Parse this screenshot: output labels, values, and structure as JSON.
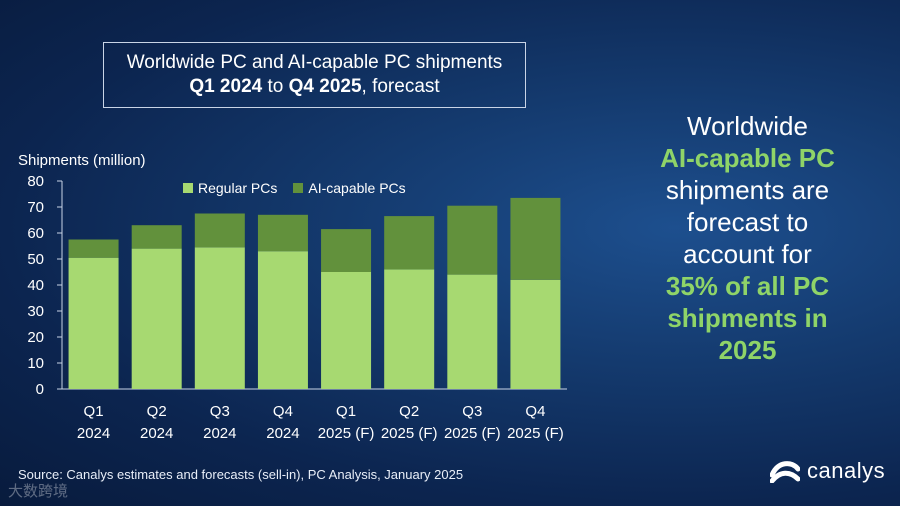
{
  "title": {
    "line1": "Worldwide PC and AI-capable PC shipments",
    "line2_a": "Q1 2024",
    "line2_b": " to ",
    "line2_c": "Q4 2025",
    "line2_d": ", forecast"
  },
  "side_text": {
    "l1": "Worldwide",
    "l2": "AI-capable PC",
    "l3": "shipments are",
    "l4": "forecast to",
    "l5": "account for",
    "l6": "35% of all PC",
    "l7": "shipments in",
    "l8": "2025"
  },
  "source": "Source: Canalys estimates and forecasts (sell-in), PC Analysis, January 2025",
  "logo": {
    "text": "canalys"
  },
  "watermark": "大数跨境",
  "colors": {
    "regular": "#a7d971",
    "ai": "#62913c",
    "highlight": "#8fd468",
    "text": "#ffffff"
  },
  "chart_data": {
    "type": "bar",
    "stacked": true,
    "categories": [
      [
        "Q1",
        "2024"
      ],
      [
        "Q2",
        "2024"
      ],
      [
        "Q3",
        "2024"
      ],
      [
        "Q4",
        "2024"
      ],
      [
        "Q1",
        "2025 (F)"
      ],
      [
        "Q2",
        "2025 (F)"
      ],
      [
        "Q3",
        "2025 (F)"
      ],
      [
        "Q4",
        "2025 (F)"
      ]
    ],
    "series": [
      {
        "name": "Regular PCs",
        "values": [
          50.5,
          54,
          54.5,
          53,
          45,
          46,
          44,
          42
        ]
      },
      {
        "name": "AI-capable PCs",
        "values": [
          7,
          9,
          13,
          14,
          16.5,
          20.5,
          26.5,
          31.5
        ]
      }
    ],
    "ylabel": "Shipments (million)",
    "ylim": [
      0,
      80
    ],
    "yticks": [
      0,
      10,
      20,
      30,
      40,
      50,
      60,
      70,
      80
    ],
    "legend_position": "top",
    "grid": false
  }
}
